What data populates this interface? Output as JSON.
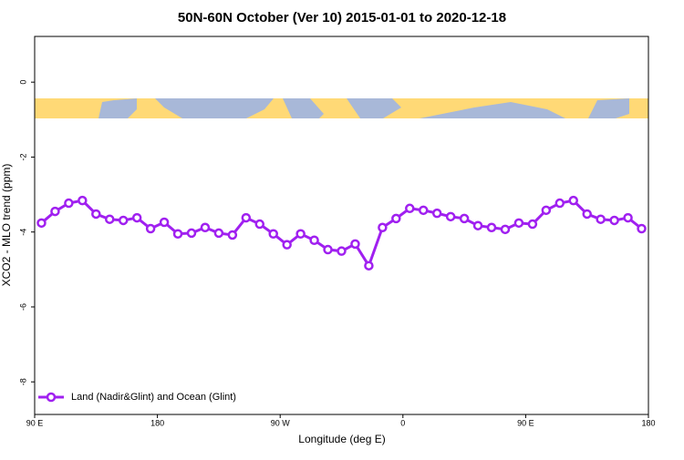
{
  "chart_data": {
    "type": "line",
    "title": "50N-60N October (Ver 10)   2015-01-01 to 2020-12-18",
    "x_label": "Longitude (deg E)",
    "y_label": "XCO2 - MLO trend (ppm)",
    "xlim": [
      90,
      540
    ],
    "xticks": [
      {
        "value": 90,
        "label": "90 E"
      },
      180,
      {
        "value": 270,
        "label": "90 W"
      },
      {
        "value": 360,
        "label": "0"
      },
      {
        "value": 450,
        "label": "90 E"
      },
      {
        "value": 540,
        "label": "180"
      }
    ],
    "ylim": [
      -8.87,
      1.22
    ],
    "yticks": [
      0,
      -2,
      -4,
      -6,
      -8
    ],
    "legend": "bottom-left",
    "x": [
      95,
      105,
      115,
      125,
      135,
      145,
      155,
      165,
      175,
      185,
      195,
      205,
      215,
      225,
      235,
      245,
      255,
      265,
      275,
      285,
      295,
      305,
      315,
      325,
      335,
      345,
      355,
      365,
      375,
      385,
      395,
      405,
      415,
      425,
      435,
      445,
      455,
      465,
      475,
      485,
      495,
      505,
      515,
      525,
      535
    ],
    "series": [
      {
        "name": "Land (Nadir&Glint) and Ocean (Glint)",
        "color": "#a020f0",
        "values": [
          -3.76,
          -3.45,
          -3.23,
          -3.16,
          -3.52,
          -3.66,
          -3.69,
          -3.62,
          -3.91,
          -3.74,
          -4.05,
          -4.03,
          -3.88,
          -4.03,
          -4.08,
          -3.62,
          -3.79,
          -4.05,
          -4.34,
          -4.05,
          -4.22,
          -4.47,
          -4.51,
          -4.32,
          -4.9,
          -3.88,
          -3.64,
          -3.37,
          -3.42,
          -3.5,
          -3.59,
          -3.64,
          -3.83,
          -3.88,
          -3.93,
          -3.76,
          -3.79,
          -3.42,
          -3.23,
          -3.16,
          -3.52,
          -3.66,
          -3.69,
          -3.62,
          -3.91
        ]
      }
    ]
  }
}
